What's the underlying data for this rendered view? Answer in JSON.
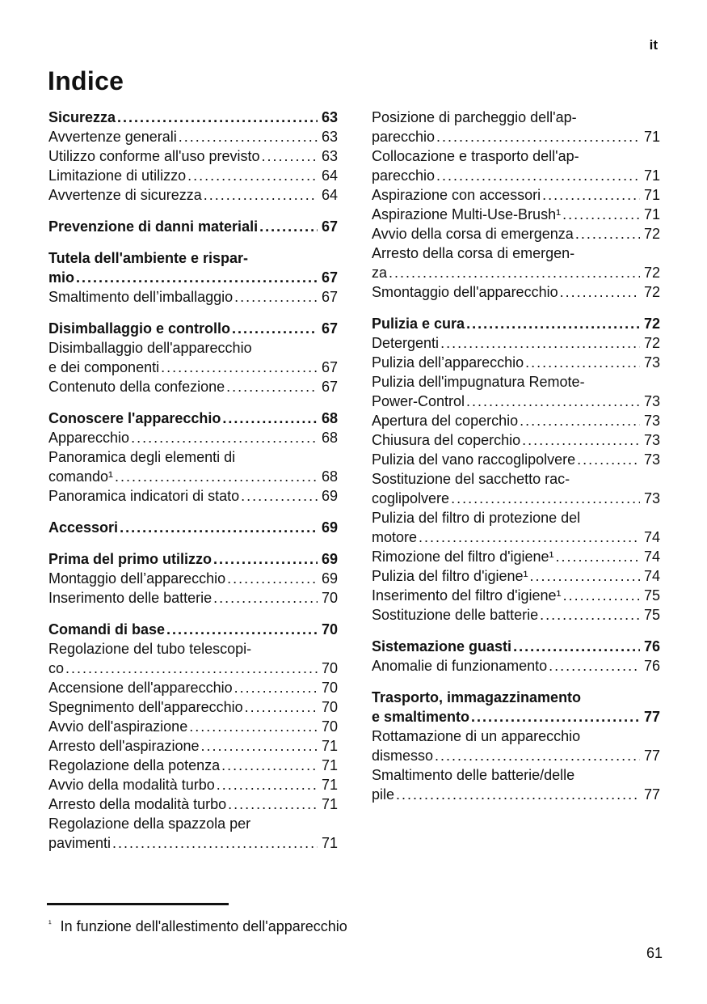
{
  "page": {
    "lang_marker": "it",
    "title": "Indice",
    "page_number": "61",
    "footnote": {
      "marker": "¹",
      "text": "In funzione dell'allestimento dell'apparecchio"
    }
  },
  "colors": {
    "ink": "#111111",
    "background": "#ffffff"
  },
  "toc": {
    "left": [
      {
        "entries": [
          {
            "bold": true,
            "lines": [
              "Sicurezza"
            ],
            "page": "63"
          },
          {
            "bold": false,
            "lines": [
              "Avvertenze generali"
            ],
            "page": "63"
          },
          {
            "bold": false,
            "lines": [
              "Utilizzo conforme all'uso previsto"
            ],
            "page": "63"
          },
          {
            "bold": false,
            "lines": [
              "Limitazione di utilizzo"
            ],
            "page": "64"
          },
          {
            "bold": false,
            "lines": [
              "Avvertenze di sicurezza"
            ],
            "page": "64"
          }
        ]
      },
      {
        "entries": [
          {
            "bold": true,
            "lines": [
              "Prevenzione di danni materiali"
            ],
            "page": "67"
          }
        ]
      },
      {
        "entries": [
          {
            "bold": true,
            "lines": [
              "Tutela dell'ambiente e rispar-",
              "mio"
            ],
            "page": "67"
          },
          {
            "bold": false,
            "lines": [
              "Smaltimento dell’imballaggio"
            ],
            "page": "67"
          }
        ]
      },
      {
        "entries": [
          {
            "bold": true,
            "lines": [
              "Disimballaggio e controllo"
            ],
            "page": "67"
          },
          {
            "bold": false,
            "lines": [
              "Disimballaggio dell'apparecchio",
              "e dei componenti"
            ],
            "page": "67"
          },
          {
            "bold": false,
            "lines": [
              "Contenuto della confezione"
            ],
            "page": "67"
          }
        ]
      },
      {
        "entries": [
          {
            "bold": true,
            "lines": [
              "Conoscere l'apparecchio"
            ],
            "page": "68"
          },
          {
            "bold": false,
            "lines": [
              "Apparecchio"
            ],
            "page": "68"
          },
          {
            "bold": false,
            "lines": [
              "Panoramica degli elementi di",
              "comando¹"
            ],
            "page": "68"
          },
          {
            "bold": false,
            "lines": [
              "Panoramica indicatori di stato"
            ],
            "page": "69"
          }
        ]
      },
      {
        "entries": [
          {
            "bold": true,
            "lines": [
              "Accessori"
            ],
            "page": "69"
          }
        ]
      },
      {
        "entries": [
          {
            "bold": true,
            "lines": [
              "Prima del primo utilizzo"
            ],
            "page": "69"
          },
          {
            "bold": false,
            "lines": [
              "Montaggio dell’apparecchio"
            ],
            "page": "69"
          },
          {
            "bold": false,
            "lines": [
              "Inserimento delle batterie"
            ],
            "page": "70"
          }
        ]
      },
      {
        "entries": [
          {
            "bold": true,
            "lines": [
              "Comandi di base"
            ],
            "page": "70"
          },
          {
            "bold": false,
            "lines": [
              "Regolazione del tubo telescopi-",
              "co"
            ],
            "page": "70"
          },
          {
            "bold": false,
            "lines": [
              "Accensione dell'apparecchio"
            ],
            "page": "70"
          },
          {
            "bold": false,
            "lines": [
              "Spegnimento dell'apparecchio"
            ],
            "page": "70"
          },
          {
            "bold": false,
            "lines": [
              "Avvio dell'aspirazione"
            ],
            "page": "70"
          },
          {
            "bold": false,
            "lines": [
              "Arresto dell'aspirazione"
            ],
            "page": "71"
          },
          {
            "bold": false,
            "lines": [
              "Regolazione della potenza"
            ],
            "page": "71"
          },
          {
            "bold": false,
            "lines": [
              "Avvio della modalità turbo"
            ],
            "page": "71"
          },
          {
            "bold": false,
            "lines": [
              "Arresto della modalità turbo"
            ],
            "page": "71"
          },
          {
            "bold": false,
            "lines": [
              "Regolazione della spazzola per",
              "pavimenti"
            ],
            "page": "71"
          }
        ]
      }
    ],
    "right": [
      {
        "entries": [
          {
            "bold": false,
            "lines": [
              "Posizione di parcheggio dell'ap-",
              "parecchio"
            ],
            "page": "71"
          },
          {
            "bold": false,
            "lines": [
              "Collocazione e trasporto dell'ap-",
              "parecchio"
            ],
            "page": "71"
          },
          {
            "bold": false,
            "lines": [
              "Aspirazione con accessori"
            ],
            "page": "71"
          },
          {
            "bold": false,
            "lines": [
              "Aspirazione Multi-Use-Brush¹"
            ],
            "page": "71"
          },
          {
            "bold": false,
            "lines": [
              "Avvio della corsa di emergenza"
            ],
            "page": "72"
          },
          {
            "bold": false,
            "lines": [
              "Arresto della corsa di emergen-",
              "za"
            ],
            "page": "72"
          },
          {
            "bold": false,
            "lines": [
              "Smontaggio dell'apparecchio"
            ],
            "page": "72"
          }
        ]
      },
      {
        "entries": [
          {
            "bold": true,
            "lines": [
              "Pulizia e cura"
            ],
            "page": "72"
          },
          {
            "bold": false,
            "lines": [
              "Detergenti"
            ],
            "page": "72"
          },
          {
            "bold": false,
            "lines": [
              "Pulizia dell’apparecchio"
            ],
            "page": "73"
          },
          {
            "bold": false,
            "lines": [
              "Pulizia dell'impugnatura Remote-",
              "Power-Control"
            ],
            "page": "73"
          },
          {
            "bold": false,
            "lines": [
              "Apertura del coperchio"
            ],
            "page": "73"
          },
          {
            "bold": false,
            "lines": [
              "Chiusura del coperchio"
            ],
            "page": "73"
          },
          {
            "bold": false,
            "lines": [
              "Pulizia del vano raccoglipolvere"
            ],
            "page": "73"
          },
          {
            "bold": false,
            "lines": [
              "Sostituzione del sacchetto rac-",
              "coglipolvere"
            ],
            "page": "73"
          },
          {
            "bold": false,
            "lines": [
              "Pulizia del filtro di protezione del",
              "motore"
            ],
            "page": "74"
          },
          {
            "bold": false,
            "lines": [
              "Rimozione del filtro d'igiene¹"
            ],
            "page": "74"
          },
          {
            "bold": false,
            "lines": [
              "Pulizia del filtro d'igiene¹"
            ],
            "page": "74"
          },
          {
            "bold": false,
            "lines": [
              "Inserimento del filtro d'igiene¹"
            ],
            "page": "75"
          },
          {
            "bold": false,
            "lines": [
              "Sostituzione delle batterie"
            ],
            "page": "75"
          }
        ]
      },
      {
        "entries": [
          {
            "bold": true,
            "lines": [
              "Sistemazione guasti"
            ],
            "page": "76"
          },
          {
            "bold": false,
            "lines": [
              "Anomalie di funzionamento"
            ],
            "page": "76"
          }
        ]
      },
      {
        "entries": [
          {
            "bold": true,
            "lines": [
              "Trasporto, immagazzinamento",
              "e smaltimento"
            ],
            "page": "77"
          },
          {
            "bold": false,
            "lines": [
              "Rottamazione di un apparecchio",
              "dismesso"
            ],
            "page": "77"
          },
          {
            "bold": false,
            "lines": [
              "Smaltimento delle batterie/delle",
              "pile"
            ],
            "page": "77"
          }
        ]
      }
    ]
  }
}
